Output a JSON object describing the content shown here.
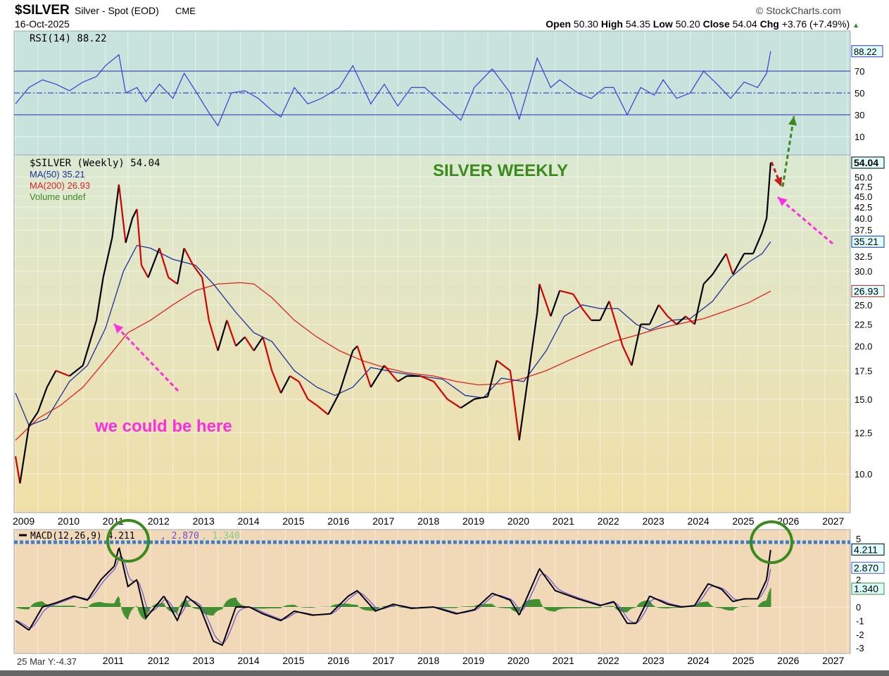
{
  "header": {
    "symbol": "$SILVER",
    "name": "Silver - Spot (EOD)",
    "exchange": "CME",
    "date": "16-Oct-2025",
    "brand": "© StockCharts.com",
    "open_label": "Open",
    "open": "50.30",
    "high_label": "High",
    "high": "54.35",
    "low_label": "Low",
    "low": "50.20",
    "close_label": "Close",
    "close": "54.04",
    "chg_label": "Chg",
    "chg": "+3.76 (+7.49%)"
  },
  "colors": {
    "rsi_bg": "#c7e3dc",
    "price_bg_top": "#dbe9d2",
    "price_bg_bottom": "#f1dfa8",
    "macd_bg": "#f1d8b6",
    "price": "#000000",
    "price_down": "#d40000",
    "ma50": "#1c2f9e",
    "ma200": "#e02020",
    "rsi": "#3b3bd6",
    "macd": "#000000",
    "signal": "#6a4fd8",
    "hist": "#3e8f2e",
    "annot_magenta": "#ff2de0",
    "annot_green": "#3a8a1e"
  },
  "chart_data": [
    {
      "type": "line",
      "title": "RSI(14) 88.22",
      "legend": "RSI(14) 88.22",
      "ylim": [
        0,
        100
      ],
      "levels": [
        70,
        50,
        30
      ],
      "ticks": [
        "70",
        "50",
        "30",
        "10"
      ],
      "last_label": "88.22",
      "x": [
        2009.0,
        2009.3,
        2009.6,
        2009.9,
        2010.2,
        2010.5,
        2010.8,
        2011.0,
        2011.3,
        2011.45,
        2011.7,
        2011.9,
        2012.2,
        2012.5,
        2012.75,
        2013.0,
        2013.3,
        2013.5,
        2013.8,
        2014.1,
        2014.4,
        2014.7,
        2014.9,
        2015.2,
        2015.5,
        2015.8,
        2016.2,
        2016.5,
        2016.9,
        2017.2,
        2017.5,
        2017.8,
        2018.1,
        2018.5,
        2018.9,
        2019.2,
        2019.6,
        2020.0,
        2020.2,
        2020.6,
        2020.9,
        2021.1,
        2021.5,
        2021.8,
        2022.1,
        2022.3,
        2022.6,
        2022.9,
        2023.2,
        2023.4,
        2023.7,
        2024.0,
        2024.3,
        2024.6,
        2024.9,
        2025.2,
        2025.5,
        2025.7,
        2025.79
      ],
      "values": [
        40,
        55,
        62,
        58,
        52,
        60,
        65,
        75,
        85,
        50,
        55,
        42,
        58,
        45,
        68,
        52,
        32,
        20,
        50,
        52,
        45,
        34,
        28,
        55,
        40,
        45,
        55,
        75,
        40,
        58,
        38,
        55,
        55,
        40,
        25,
        55,
        72,
        50,
        26,
        82,
        55,
        62,
        50,
        45,
        55,
        55,
        30,
        55,
        48,
        62,
        45,
        50,
        70,
        58,
        45,
        60,
        55,
        68,
        88.22
      ]
    },
    {
      "type": "line",
      "title": "SILVER WEEKLY",
      "scale": "log",
      "ylim": [
        8.5,
        58
      ],
      "legend": [
        {
          "label": "$SILVER (Weekly) 54.04"
        },
        {
          "label": "MA(50) 35.21"
        },
        {
          "label": "MA(200) 26.93"
        },
        {
          "label": "Volume undef"
        }
      ],
      "yticks": [
        "50.0",
        "47.5",
        "45.0",
        "42.5",
        "40.0",
        "37.5",
        "32.5",
        "30.0",
        "25.0",
        "22.5",
        "20.0",
        "17.5",
        "15.0",
        "12.5",
        "10.0"
      ],
      "ytick_values": [
        50,
        47.5,
        45,
        42.5,
        40,
        37.5,
        32.5,
        30,
        25,
        22.5,
        20,
        17.5,
        15,
        12.5,
        10
      ],
      "xticks": [
        "2009",
        "2010",
        "2011",
        "2012",
        "2013",
        "2014",
        "2015",
        "2016",
        "2017",
        "2018",
        "2019",
        "2020",
        "2021",
        "2022",
        "2023",
        "2024",
        "2025",
        "2026",
        "2027"
      ],
      "tags": [
        {
          "label": "54.04",
          "value": 54.04,
          "color": "#000000"
        },
        {
          "label": "35.21",
          "value": 35.21,
          "color": "#1c2f9e"
        },
        {
          "label": "26.93",
          "value": 26.93,
          "color": "#e02020"
        }
      ],
      "price": {
        "x": [
          2009.0,
          2009.1,
          2009.3,
          2009.5,
          2009.7,
          2009.9,
          2010.2,
          2010.5,
          2010.8,
          2010.95,
          2011.15,
          2011.3,
          2011.45,
          2011.6,
          2011.7,
          2011.8,
          2011.95,
          2012.2,
          2012.4,
          2012.6,
          2012.75,
          2012.95,
          2013.15,
          2013.3,
          2013.5,
          2013.7,
          2013.9,
          2014.1,
          2014.3,
          2014.5,
          2014.7,
          2014.9,
          2015.1,
          2015.3,
          2015.5,
          2015.7,
          2015.95,
          2016.2,
          2016.5,
          2016.6,
          2016.9,
          2017.2,
          2017.5,
          2017.7,
          2018.0,
          2018.3,
          2018.6,
          2018.9,
          2019.2,
          2019.5,
          2019.7,
          2020.0,
          2020.2,
          2020.4,
          2020.6,
          2020.65,
          2020.9,
          2021.1,
          2021.4,
          2021.6,
          2021.8,
          2022.0,
          2022.2,
          2022.5,
          2022.7,
          2022.9,
          2023.1,
          2023.3,
          2023.5,
          2023.7,
          2023.9,
          2024.1,
          2024.3,
          2024.5,
          2024.8,
          2024.95,
          2025.2,
          2025.4,
          2025.6,
          2025.7,
          2025.79
        ],
        "values": [
          11,
          9.5,
          13,
          14,
          16,
          17.5,
          17,
          18,
          23,
          29,
          36,
          48,
          35,
          40,
          42,
          31,
          29,
          34,
          29,
          28,
          34,
          31,
          29,
          23,
          19.5,
          23,
          20,
          21,
          19.5,
          21,
          17.5,
          15.5,
          17,
          16.5,
          15,
          14.5,
          13.8,
          15.5,
          19.5,
          20,
          16,
          18,
          16.5,
          17,
          17,
          16.5,
          15,
          14.3,
          15,
          15.2,
          18.5,
          17.5,
          12,
          17,
          24,
          28,
          23.5,
          27,
          26.5,
          24.5,
          23,
          23,
          25.5,
          20,
          18,
          22.5,
          22.5,
          25,
          23.5,
          22.5,
          23.5,
          22.5,
          28,
          29.5,
          33,
          29.5,
          33,
          33,
          37,
          40,
          54.04
        ]
      },
      "ma50": {
        "x": [
          2009.0,
          2009.3,
          2009.7,
          2010.2,
          2010.6,
          2011.0,
          2011.4,
          2011.7,
          2012.0,
          2012.5,
          2013.0,
          2013.4,
          2013.9,
          2014.3,
          2014.7,
          2015.2,
          2015.7,
          2016.1,
          2016.5,
          2016.9,
          2017.5,
          2018.0,
          2018.5,
          2019.0,
          2019.4,
          2019.8,
          2020.3,
          2020.8,
          2021.2,
          2021.6,
          2022.0,
          2022.4,
          2022.8,
          2023.1,
          2023.6,
          2024.0,
          2024.5,
          2024.9,
          2025.3,
          2025.6,
          2025.79
        ],
        "values": [
          15.5,
          13,
          13.5,
          16.5,
          18,
          22,
          30,
          34.5,
          34,
          32,
          31,
          28,
          24,
          21.5,
          20.5,
          17.5,
          16,
          15.3,
          16,
          17.8,
          17.3,
          17,
          16.7,
          15.3,
          15.1,
          16.8,
          16.5,
          19.5,
          23.5,
          25,
          24.5,
          24.5,
          22.5,
          21.8,
          23,
          23.2,
          25.5,
          29,
          31.5,
          33,
          35.21
        ]
      },
      "ma200": {
        "x": [
          2009.0,
          2009.5,
          2010.0,
          2010.5,
          2011.0,
          2011.5,
          2012.0,
          2012.5,
          2013.0,
          2013.5,
          2014.0,
          2014.3,
          2014.7,
          2015.2,
          2015.7,
          2016.2,
          2016.7,
          2017.2,
          2017.7,
          2018.3,
          2018.8,
          2019.3,
          2019.8,
          2020.3,
          2020.8,
          2021.3,
          2021.8,
          2022.3,
          2022.8,
          2023.3,
          2023.8,
          2024.3,
          2024.8,
          2025.3,
          2025.79
        ],
        "values": [
          12,
          13.5,
          14.5,
          16,
          18.5,
          21.5,
          23,
          25,
          27,
          28,
          28.2,
          28,
          26,
          23,
          21,
          19.5,
          18.5,
          17.8,
          17.3,
          17,
          16.5,
          16.2,
          16.3,
          16.8,
          17.5,
          18.5,
          19.5,
          20.5,
          21.2,
          22,
          22.6,
          23.2,
          24.2,
          25.3,
          26.93
        ]
      },
      "annotations": [
        "SILVER WEEKLY",
        "we could be here"
      ]
    },
    {
      "type": "line",
      "title": "MACD(12,26,9)",
      "legend_macd": "MACD(12,26,9) 4.211",
      "legend_signal": ", 2.870",
      "legend_hist": ", 1.340",
      "ylim": [
        -3.5,
        5.5
      ],
      "yticks": [
        "5",
        "2",
        "0",
        "-1",
        "-2",
        "-3"
      ],
      "ytick_values": [
        5,
        2,
        0,
        -1,
        -2,
        -3
      ],
      "tags": [
        {
          "label": "4.211",
          "value": 4.211
        },
        {
          "label": "2.870",
          "value": 2.87
        },
        {
          "label": "1.340",
          "value": 1.34
        }
      ],
      "xticks": [
        "2011",
        "2012",
        "2013",
        "2014",
        "2015",
        "2016",
        "2017",
        "2018",
        "2019",
        "2020",
        "2021",
        "2022",
        "2023",
        "2024",
        "2025",
        "2026",
        "2027"
      ],
      "footer": "25 Mar Y:-4.37",
      "x": [
        2009.0,
        2009.3,
        2009.6,
        2009.9,
        2010.3,
        2010.6,
        2010.9,
        2011.2,
        2011.3,
        2011.5,
        2011.7,
        2011.9,
        2012.3,
        2012.6,
        2012.8,
        2013.1,
        2013.4,
        2013.6,
        2013.9,
        2014.2,
        2014.5,
        2014.9,
        2015.2,
        2015.6,
        2016.0,
        2016.4,
        2016.6,
        2017.0,
        2017.4,
        2017.8,
        2018.3,
        2018.8,
        2019.2,
        2019.6,
        2020.0,
        2020.2,
        2020.65,
        2021.0,
        2021.5,
        2022.0,
        2022.3,
        2022.6,
        2022.8,
        2023.1,
        2023.5,
        2023.8,
        2024.1,
        2024.4,
        2024.7,
        2024.95,
        2025.2,
        2025.5,
        2025.7,
        2025.79
      ],
      "values": [
        -1,
        -1.7,
        0,
        0.3,
        0.8,
        0.5,
        2,
        3,
        4.4,
        1.5,
        2,
        -0.8,
        0.8,
        -1,
        0.8,
        0,
        -2.5,
        -2.8,
        0,
        0,
        -0.5,
        -1,
        -0.3,
        -0.6,
        -0.5,
        0.8,
        1.2,
        -0.3,
        0.2,
        -0.1,
        0,
        -0.5,
        -0.2,
        1,
        0.5,
        -0.6,
        2.8,
        1.2,
        0.6,
        0.1,
        0.4,
        -1.2,
        -1.2,
        0.8,
        0.2,
        0,
        0.1,
        1.7,
        1.3,
        0.4,
        0.6,
        0.6,
        2.0,
        4.211
      ]
    }
  ]
}
